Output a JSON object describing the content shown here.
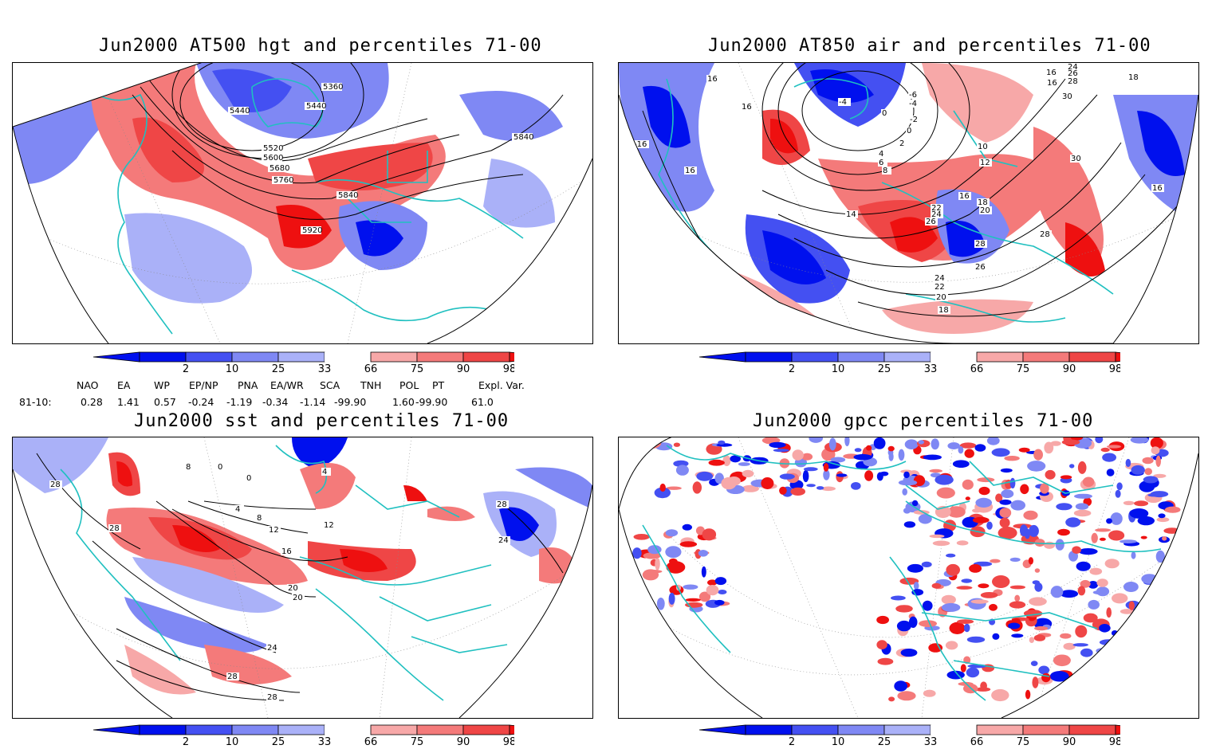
{
  "palette": {
    "blue_dark": "#0010ee",
    "blue_mid": "#4450f2",
    "blue_light": "#7f88f4",
    "blue_pale": "#aab1f8",
    "red_pale": "#f7a8a8",
    "red_light": "#f47a7a",
    "red_mid": "#ef4646",
    "red_dark": "#ee1010",
    "coast": "#20c0c0",
    "contour": "#000000"
  },
  "colorbar": {
    "ticks": [
      "2",
      "10",
      "25",
      "33",
      "66",
      "75",
      "90",
      "98"
    ]
  },
  "panels": [
    {
      "title": "Jun2000 AT500 hgt and percentiles 71-00",
      "contour_labels": [
        "5360",
        "5440",
        "5440",
        "5520",
        "5600",
        "5680",
        "5760",
        "5840",
        "5920",
        "5840"
      ]
    },
    {
      "title": "Jun2000 AT850 air and percentiles 71-00",
      "contour_labels": [
        "16",
        "16",
        "16",
        "-16",
        "-4",
        "-6",
        "-4",
        "0",
        "-2",
        "0",
        "2",
        "4",
        "6",
        "8",
        "10",
        "12",
        "14",
        "16",
        "18",
        "20",
        "22",
        "24",
        "26",
        "28",
        "26",
        "24",
        "22",
        "20",
        "18",
        "28",
        "30",
        "30",
        "24",
        "26",
        "28",
        "16",
        "16",
        "16",
        "18"
      ]
    },
    {
      "title": "Jun2000 sst and percentiles 71-00",
      "contour_labels": [
        "28",
        "28",
        "8",
        "0",
        "0",
        "4",
        "4",
        "8",
        "12",
        "16",
        "20",
        "20",
        "24",
        "28",
        "28",
        "28",
        "24",
        "12"
      ]
    },
    {
      "title": "Jun2000 gpcc percentiles 71-00",
      "contour_labels": []
    }
  ],
  "indices": {
    "headers": [
      "NAO",
      "EA",
      "WP",
      "EP/NP",
      "PNA",
      "EA/WR",
      "SCA",
      "TNH",
      "POL",
      "PT",
      "Expl. Var."
    ],
    "row_label": "81-10:",
    "values": [
      "0.28",
      "1.41",
      "0.57",
      "-0.24",
      "-1.19",
      "-0.34",
      "-1.14",
      "-99.90",
      "1.60",
      "-99.90",
      "61.0"
    ]
  }
}
